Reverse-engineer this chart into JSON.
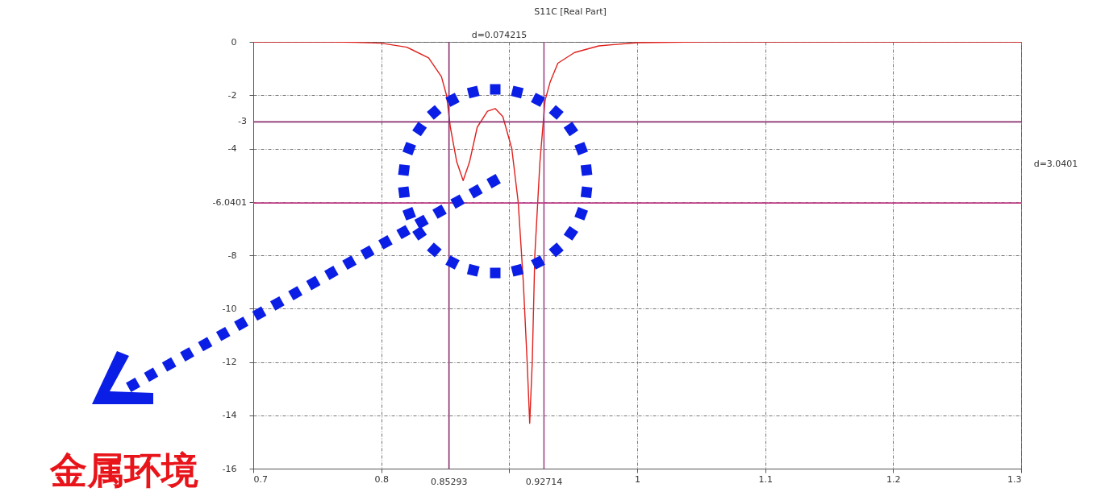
{
  "chart_data": {
    "type": "line",
    "title": "S11C [Real Part]",
    "x": [
      0.7,
      0.76,
      0.78,
      0.8,
      0.82,
      0.837,
      0.847,
      0.851,
      0.854,
      0.859,
      0.864,
      0.869,
      0.875,
      0.883,
      0.889,
      0.895,
      0.902,
      0.907,
      0.911,
      0.914,
      0.916,
      0.918,
      0.92,
      0.924,
      0.928,
      0.932,
      0.938,
      0.951,
      0.97,
      1.0,
      1.05,
      1.3
    ],
    "series": [
      {
        "color": "#e0201c",
        "values": [
          0,
          0,
          -0.02,
          -0.05,
          -0.2,
          -0.6,
          -1.3,
          -2,
          -3.2,
          -4.5,
          -5.2,
          -4.5,
          -3.2,
          -2.6,
          -2.5,
          -2.8,
          -4,
          -6,
          -9,
          -12,
          -14.3,
          -12,
          -8,
          -4.5,
          -2.2,
          -1.5,
          -0.8,
          -0.4,
          -0.15,
          -0.03,
          0,
          0
        ]
      }
    ],
    "xlim": [
      0.7,
      1.3
    ],
    "xticks": [
      0.7,
      0.8,
      {
        "value": 0.9,
        "label": null
      },
      1,
      1.1,
      1.2,
      1.3
    ],
    "ylim": [
      -16,
      0
    ],
    "yticks": [
      0,
      -2,
      -4,
      {
        "value": -6,
        "label": null
      },
      -8,
      -10,
      -12,
      -14,
      -16
    ],
    "grid": true,
    "line_style": "solid",
    "ref_lines": [
      {
        "axis": "x",
        "value": 0.85293,
        "label": "0.85293",
        "color": "#8a2f6e"
      },
      {
        "axis": "x",
        "value": 0.92714,
        "label": "0.92714",
        "color": "#a2458a"
      },
      {
        "axis": "y",
        "value": -3,
        "label": "-3",
        "color": "#8a2f6e"
      },
      {
        "axis": "y",
        "value": -6.0401,
        "label": "-6.0401",
        "color": "#c0408a"
      }
    ],
    "annotations": [
      "d=0.074215",
      "d=3.0401",
      "金属环境"
    ]
  }
}
